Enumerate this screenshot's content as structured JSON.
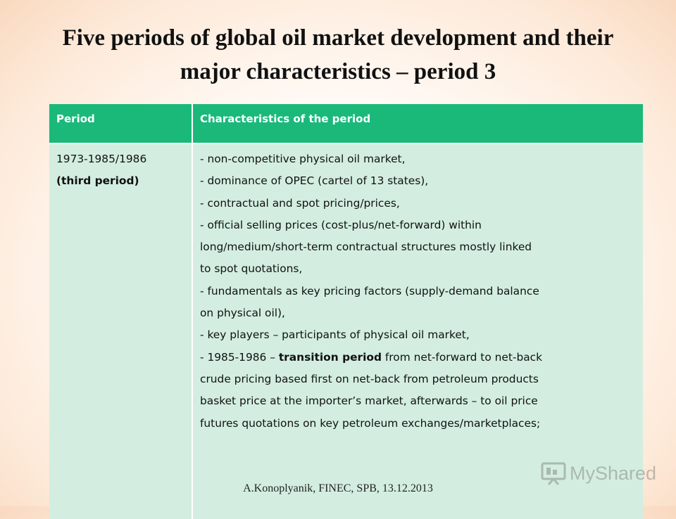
{
  "title": {
    "line1": "Five periods of global oil market development and their",
    "line2": "major characteristics – period 3"
  },
  "table": {
    "headers": [
      "Period",
      "Characteristics of the period"
    ],
    "period": {
      "years": "1973-1985/1986",
      "label": "(third period)"
    },
    "characteristics": [
      "- non-competitive physical oil market,",
      "- dominance of OPEC (cartel of 13 states),",
      "- contractual and spot pricing/prices,",
      "- official selling prices (cost-plus/net-forward) within",
      "long/medium/short-term contractual structures mostly linked",
      "to spot quotations,",
      "- fundamentals as key pricing factors (supply-demand balance",
      "on physical oil),",
      "- key players – participants of physical oil market,"
    ],
    "transition": {
      "prefix": "- 1985-1986 – ",
      "bold": "transition period",
      "suffix": " from net-forward to net-back"
    },
    "characteristics_tail": [
      "crude pricing based first on net-back from petroleum products",
      "basket price at the importer’s market, afterwards – to oil price",
      "futures quotations on key petroleum exchanges/marketplaces;"
    ]
  },
  "footer": "A.Konoplyanik, FINEC, SPB, 13.12.2013",
  "watermark": {
    "text": "MyShared",
    "icon": "presentation-board-icon"
  }
}
